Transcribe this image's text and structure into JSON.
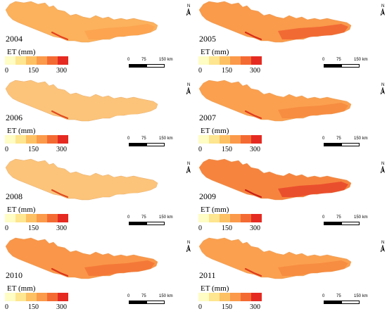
{
  "maps": [
    {
      "year": "2004",
      "et_label": "ET (mm)",
      "ticks": [
        "0",
        "150",
        "300"
      ],
      "intensity": "low"
    },
    {
      "year": "2005",
      "et_label": "ET (mm)",
      "ticks": [
        "0",
        "150",
        "300"
      ],
      "intensity": "high"
    },
    {
      "year": "2006",
      "et_label": "ET (mm)",
      "ticks": [
        "0",
        "150",
        "300"
      ],
      "intensity": "lowest"
    },
    {
      "year": "2007",
      "et_label": "ET (mm)",
      "ticks": [
        "0",
        "150",
        "300"
      ],
      "intensity": "medium"
    },
    {
      "year": "2008",
      "et_label": "ET (mm)",
      "ticks": [
        "0",
        "150",
        "300"
      ],
      "intensity": "lowest"
    },
    {
      "year": "2009",
      "et_label": "ET (mm)",
      "ticks": [
        "0",
        "150",
        "300"
      ],
      "intensity": "highest"
    },
    {
      "year": "2010",
      "et_label": "ET (mm)",
      "ticks": [
        "0",
        "150",
        "300"
      ],
      "intensity": "medium-high"
    },
    {
      "year": "2011",
      "et_label": "ET (mm)",
      "ticks": [
        "0",
        "150",
        "300"
      ],
      "intensity": "medium"
    }
  ],
  "legend_colors": [
    "#fffcc4",
    "#fee58f",
    "#fdc062",
    "#fb9a4a",
    "#f46a33",
    "#e52a22"
  ],
  "scalebar": {
    "labels": [
      "0",
      "75",
      "150 km"
    ]
  },
  "north_label": "N"
}
